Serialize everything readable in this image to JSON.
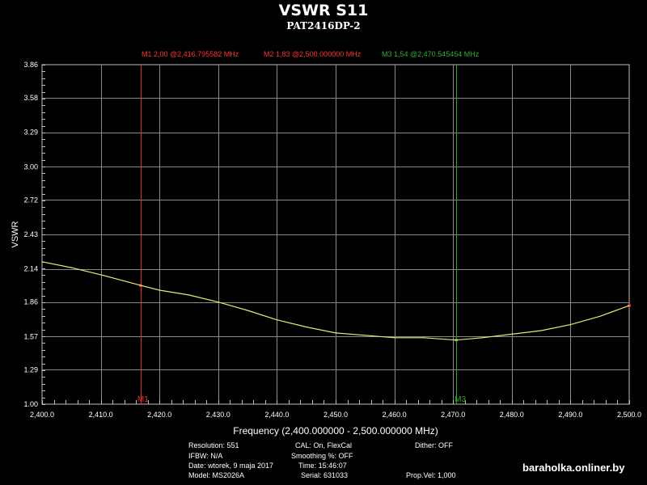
{
  "header": {
    "title": "VSWR S11",
    "subtitle": "PAT2416DP-2"
  },
  "markers": {
    "m1_readout": "M1  2,00 @2,416.795582 MHz",
    "m2_readout": "M2  1,83 @2,500.000000 MHz",
    "m3_readout": "M3  1,54 @2,470.545454 MHz",
    "m1_label": "M1",
    "m3_label": "M3"
  },
  "info": {
    "resolution": "Resolution: 551",
    "ifbw": "IFBW: N/A",
    "date": "Date: wtorek, 9 maja 2017",
    "model": "Model: MS2026A",
    "cal": "CAL: On, FlexCal",
    "smoothing": "Smoothing %:  OFF",
    "time": "Time: 15:46:07",
    "serial": "Serial: 631033",
    "dither": "Dither:  OFF",
    "propvel": "Prop.Vel: 1,000"
  },
  "watermark": "baraholka.onliner.by",
  "chart_data": {
    "type": "line",
    "title": "VSWR S11",
    "subtitle": "PAT2416DP-2",
    "xlabel": "Frequency (2,400.000000 - 2,500.000000 MHz)",
    "ylabel": "VSWR",
    "xlim": [
      2400,
      2500
    ],
    "ylim": [
      1.0,
      3.86
    ],
    "x_ticks": [
      "2,400.0",
      "2,410.0",
      "2,420.0",
      "2,430.0",
      "2,440.0",
      "2,450.0",
      "2,460.0",
      "2,470.0",
      "2,480.0",
      "2,490.0",
      "2,500.0"
    ],
    "x_tick_values": [
      2400,
      2410,
      2420,
      2430,
      2440,
      2450,
      2460,
      2470,
      2480,
      2490,
      2500
    ],
    "y_ticks": [
      "1.00",
      "1.29",
      "1.57",
      "1.86",
      "2.14",
      "2.43",
      "2.72",
      "3.00",
      "3.29",
      "3.58",
      "3.86"
    ],
    "y_tick_values": [
      1.0,
      1.29,
      1.57,
      1.86,
      2.14,
      2.43,
      2.72,
      3.0,
      3.29,
      3.58,
      3.86
    ],
    "grid": true,
    "series": [
      {
        "color": "#e8e87a",
        "x": [
          2400,
          2405,
          2410,
          2416.8,
          2420,
          2425,
          2430,
          2435,
          2440,
          2445,
          2450,
          2455,
          2460,
          2465,
          2470.5,
          2475,
          2480,
          2485,
          2490,
          2495,
          2500
        ],
        "y": [
          2.2,
          2.15,
          2.09,
          2.0,
          1.96,
          1.92,
          1.86,
          1.79,
          1.71,
          1.65,
          1.6,
          1.58,
          1.56,
          1.56,
          1.54,
          1.56,
          1.59,
          1.62,
          1.67,
          1.74,
          1.83
        ]
      }
    ],
    "markers": [
      {
        "name": "M1",
        "x": 2416.795582,
        "y": 2.0,
        "color": "#e03030"
      },
      {
        "name": "M2",
        "x": 2500.0,
        "y": 1.83,
        "color": "#e03030"
      },
      {
        "name": "M3",
        "x": 2470.545454,
        "y": 1.54,
        "color": "#30a030"
      }
    ]
  }
}
